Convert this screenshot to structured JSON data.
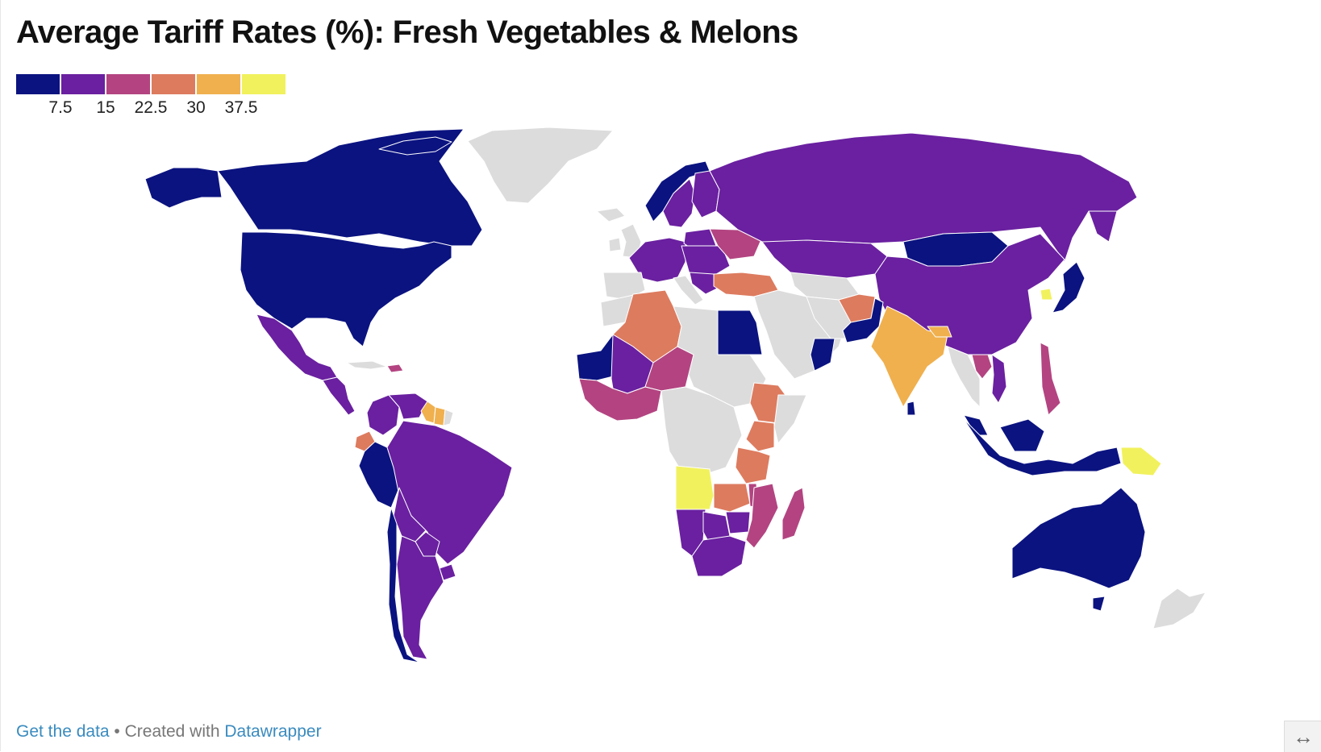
{
  "title": "Average Tariff Rates (%): Fresh Vegetables & Melons",
  "legend": {
    "colors": [
      "#0b1380",
      "#6a20a0",
      "#b34481",
      "#dd7b5f",
      "#f0b04e",
      "#f1f15d"
    ],
    "ticks": [
      "7.5",
      "15",
      "22.5",
      "30",
      "37.5"
    ]
  },
  "colors": {
    "nodata": "#dcdcdc",
    "border": "#ffffff"
  },
  "map": {
    "bins": {
      "0-7.5": [
        "Canada",
        "United States",
        "Norway",
        "Mongolia",
        "Japan",
        "Egypt",
        "Mauritania",
        "Pakistan",
        "Oman",
        "Peru",
        "Chile",
        "Indonesia",
        "Malaysia",
        "Australia",
        "Sri Lanka"
      ],
      "7.5-15": [
        "Russia",
        "China",
        "Kazakhstan",
        "Mexico",
        "Brazil",
        "Colombia",
        "Venezuela",
        "Argentina",
        "Bolivia",
        "Paraguay",
        "Uruguay",
        "Sweden",
        "Finland",
        "Poland",
        "South Africa",
        "Namibia",
        "Botswana",
        "Zimbabwe",
        "Mali",
        "Vietnam"
      ],
      "15-22.5": [
        "Niger",
        "Ukraine",
        "Philippines",
        "Mozambique",
        "Madagascar",
        "Malawi",
        "Guinea",
        "Burkina Faso",
        "Thailand",
        "Dominican Republic"
      ],
      "22.5-30": [
        "Algeria",
        "Turkey",
        "Afghanistan",
        "Ethiopia",
        "Kenya",
        "Tanzania",
        "Ecuador",
        "Zambia"
      ],
      "30-37.5": [
        "India",
        "Nepal",
        "Guyana",
        "Suriname"
      ],
      "37.5+": [
        "Angola",
        "Papua New Guinea",
        "South Korea"
      ]
    }
  },
  "footer": {
    "get_data": "Get the data",
    "separator": " • Created with ",
    "tool": "Datawrapper"
  },
  "expand_icon": "↔"
}
